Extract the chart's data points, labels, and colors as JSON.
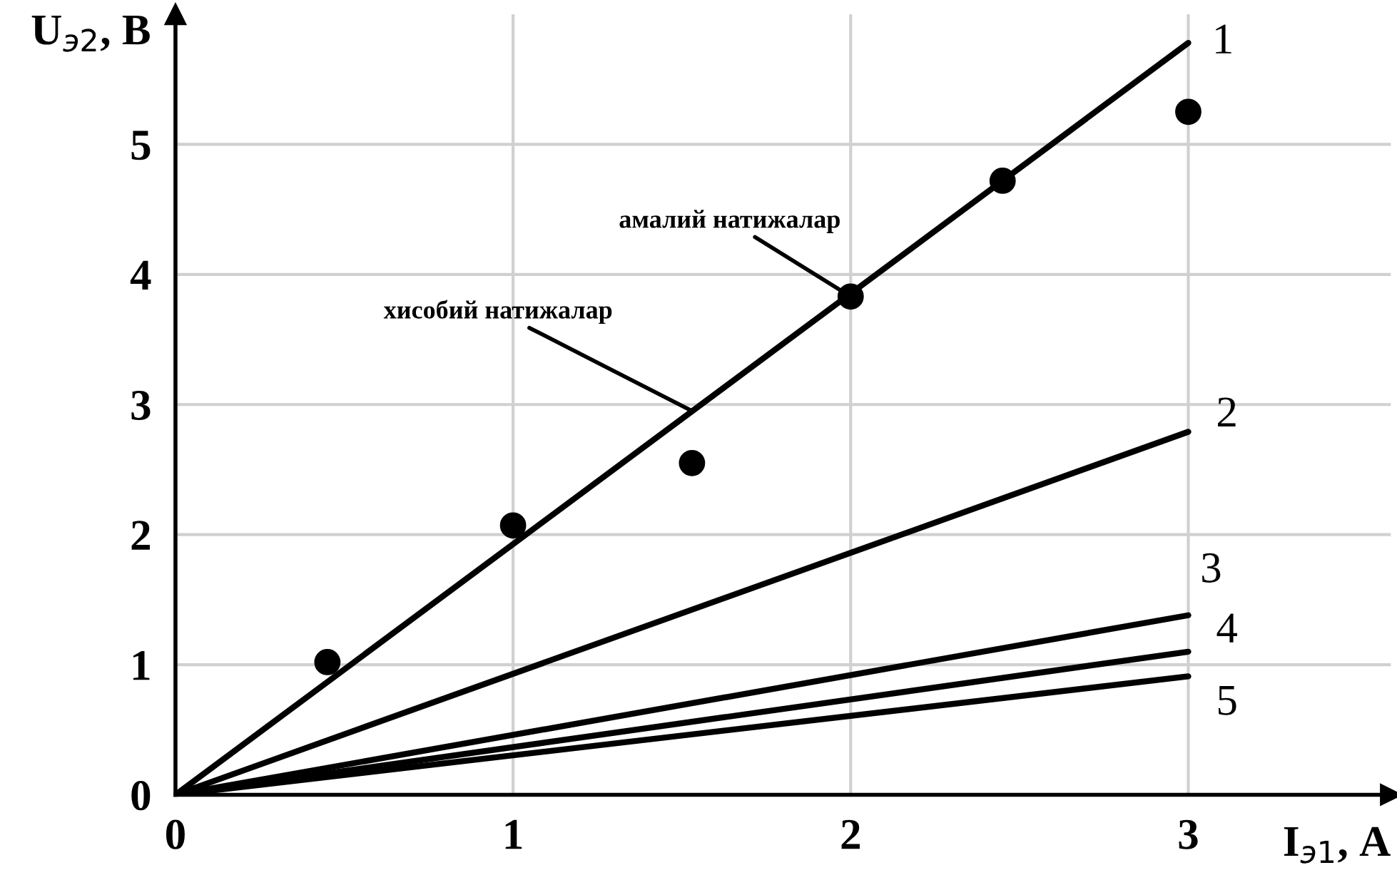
{
  "chart_data": {
    "type": "line",
    "xlabel": "I$_{э1}$, А",
    "ylabel": "U$_{э2}$, В",
    "xlim": [
      0,
      3.6
    ],
    "ylim": [
      0,
      6
    ],
    "xticks": [
      0,
      1,
      2,
      3
    ],
    "yticks": [
      0,
      1,
      2,
      3,
      4,
      5
    ],
    "grid": true,
    "legend": false,
    "line_style": "solid",
    "series": [
      {
        "name": "1",
        "color": "#000000",
        "x": [
          0,
          3
        ],
        "values": [
          0,
          5.78
        ]
      },
      {
        "name": "2",
        "color": "#000000",
        "x": [
          0,
          3
        ],
        "values": [
          0,
          2.79
        ]
      },
      {
        "name": "3",
        "color": "#000000",
        "x": [
          0,
          3
        ],
        "values": [
          0,
          1.38
        ]
      },
      {
        "name": "4",
        "color": "#000000",
        "x": [
          0,
          3
        ],
        "values": [
          0,
          1.1
        ]
      },
      {
        "name": "5",
        "color": "#000000",
        "x": [
          0,
          3
        ],
        "values": [
          0,
          0.91
        ]
      },
      {
        "type": "scatter",
        "marker": "circle",
        "color": "#000000",
        "x": [
          0.45,
          1.0,
          1.53,
          2.0,
          2.45,
          3.0
        ],
        "values": [
          1.02,
          2.07,
          2.55,
          3.83,
          4.72,
          5.25
        ]
      }
    ],
    "annotations": [
      {
        "text": "амалий натижалар",
        "x": 2.0,
        "y": 3.83
      },
      {
        "text": "хисобий натижалар",
        "x": 1.53,
        "y": 2.95
      }
    ]
  }
}
